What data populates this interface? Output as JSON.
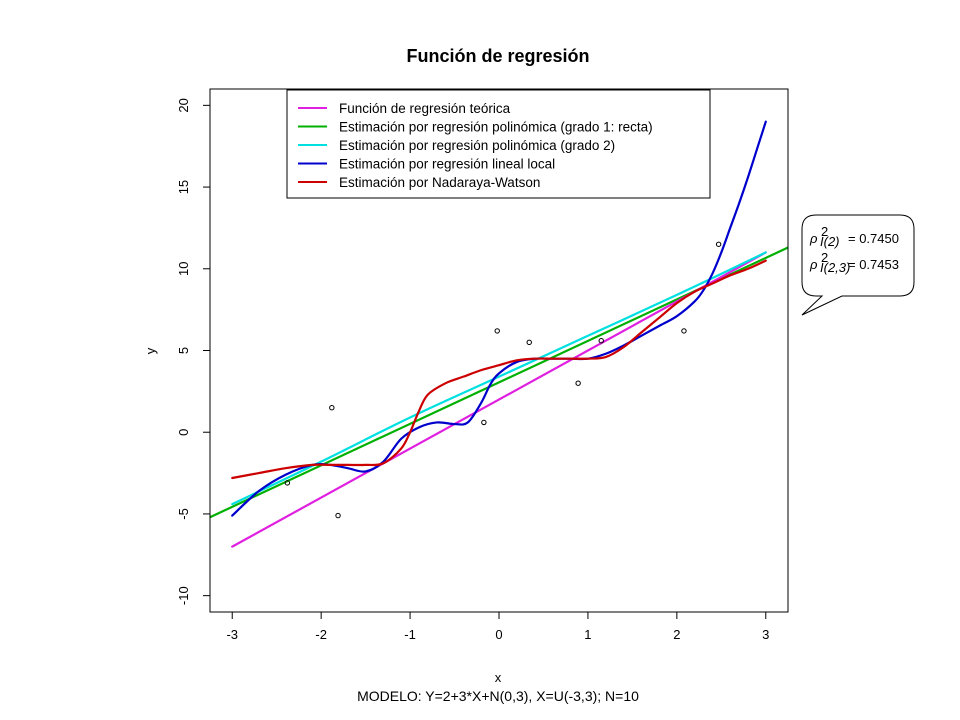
{
  "chart_data": {
    "type": "scatter",
    "title": "Función de regresión",
    "xlabel": "x",
    "ylabel": "y",
    "subtitle": "MODELO: Y=2+3*X+N(0,3), X=U(-3,3);  N=10",
    "xlim": [
      -3.25,
      3.25
    ],
    "ylim": [
      -11.0,
      21.0
    ],
    "xticks": [
      -3,
      -2,
      -1,
      0,
      1,
      2,
      3
    ],
    "xtick_labels": [
      "-3",
      "-2",
      "-1",
      "0",
      "1",
      "2",
      "3"
    ],
    "yticks": [
      -10,
      -5,
      0,
      5,
      10,
      15,
      20
    ],
    "ytick_labels": [
      "-10",
      "-5",
      "0",
      "5",
      "10",
      "15",
      "20"
    ],
    "grid": false,
    "legend_position": "top",
    "points": {
      "name": "datos",
      "x": [
        -2.38,
        -1.88,
        -1.81,
        -0.17,
        -0.02,
        0.34,
        0.89,
        1.15,
        2.08,
        2.47
      ],
      "y": [
        -3.1,
        1.5,
        -5.1,
        0.6,
        6.2,
        5.5,
        3.0,
        5.6,
        6.2,
        11.5
      ]
    },
    "series": [
      {
        "name": "Función de regresión teórica",
        "color": "#e020e0",
        "x": [
          -3,
          3
        ],
        "y": [
          -7.0,
          11.0
        ]
      },
      {
        "name": "Estimación por regresión polinómica (grado 1: recta)",
        "color": "#00b000",
        "x": [
          -3.25,
          3.25
        ],
        "y": [
          -5.2,
          11.3
        ]
      },
      {
        "name": "Estimación por regresión polinómica (grado 2)",
        "color": "#00e0e0",
        "x": [
          -3,
          -2,
          -1,
          0,
          1,
          2,
          3
        ],
        "y": [
          -4.4,
          -1.8,
          0.9,
          3.4,
          5.9,
          8.4,
          11.0
        ]
      },
      {
        "name": "Estimación por regresión lineal local",
        "color": "#0000cc",
        "x": [
          -3.0,
          -2.7,
          -2.4,
          -2.1,
          -1.9,
          -1.7,
          -1.5,
          -1.3,
          -1.1,
          -0.9,
          -0.7,
          -0.5,
          -0.35,
          -0.2,
          -0.1,
          0.0,
          0.2,
          0.4,
          0.6,
          0.8,
          1.0,
          1.2,
          1.4,
          1.6,
          1.8,
          2.0,
          2.2,
          2.3,
          2.4,
          2.5,
          2.6,
          2.7,
          2.8,
          2.9,
          3.0
        ],
        "y": [
          -5.1,
          -3.6,
          -2.6,
          -2.0,
          -2.0,
          -2.2,
          -2.4,
          -1.8,
          -0.4,
          0.3,
          0.6,
          0.5,
          0.6,
          1.8,
          2.9,
          3.6,
          4.3,
          4.5,
          4.5,
          4.5,
          4.5,
          4.8,
          5.3,
          5.9,
          6.5,
          7.1,
          8.0,
          8.7,
          9.7,
          11.0,
          12.5,
          14.0,
          15.6,
          17.3,
          19.0
        ]
      },
      {
        "name": "Estimación por Nadaraya-Watson",
        "color": "#cc0000",
        "x": [
          -3.0,
          -2.7,
          -2.4,
          -2.1,
          -1.9,
          -1.7,
          -1.5,
          -1.3,
          -1.1,
          -1.0,
          -0.9,
          -0.8,
          -0.6,
          -0.4,
          -0.2,
          0.0,
          0.2,
          0.4,
          0.6,
          0.8,
          1.0,
          1.2,
          1.4,
          1.6,
          1.8,
          2.0,
          2.2,
          2.4,
          2.6,
          2.8,
          3.0
        ],
        "y": [
          -2.8,
          -2.5,
          -2.2,
          -2.0,
          -2.0,
          -2.0,
          -2.0,
          -1.9,
          -1.0,
          0.0,
          1.3,
          2.3,
          3.0,
          3.4,
          3.8,
          4.1,
          4.4,
          4.5,
          4.5,
          4.5,
          4.5,
          4.6,
          5.2,
          6.1,
          7.0,
          7.9,
          8.6,
          9.1,
          9.6,
          10.0,
          10.5
        ]
      }
    ],
    "annotation": {
      "lines": [
        {
          "symbol": "ρ",
          "superscript": "2",
          "subscript": "I(2)",
          "value": "= 0.7450"
        },
        {
          "symbol": "ρ",
          "superscript": "2",
          "subscript": "I(2,3)",
          "value": "= 0.7453"
        }
      ]
    }
  }
}
